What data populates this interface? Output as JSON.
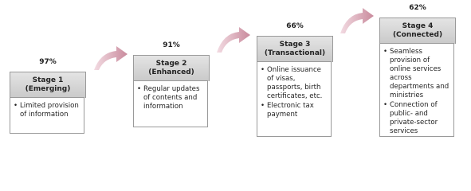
{
  "stages": [
    {
      "percent": "97%",
      "title": "Stage 1",
      "subtitle": "(Emerging)",
      "items": [
        "Limited provision of information"
      ]
    },
    {
      "percent": "91%",
      "title": "Stage 2",
      "subtitle": "(Enhanced)",
      "items": [
        "Regular updates of contents and information"
      ]
    },
    {
      "percent": "66%",
      "title": "Stage 3",
      "subtitle": "(Transactional)",
      "items": [
        "Online issuance of visas, passports, birth certificates, etc.",
        "Electronic tax payment"
      ]
    },
    {
      "percent": "62%",
      "title": "Stage 4",
      "subtitle": "(Connected)",
      "items": [
        "Seamless provision of online services across departments and ministries",
        "Connection of public- and private-sector services"
      ]
    }
  ]
}
